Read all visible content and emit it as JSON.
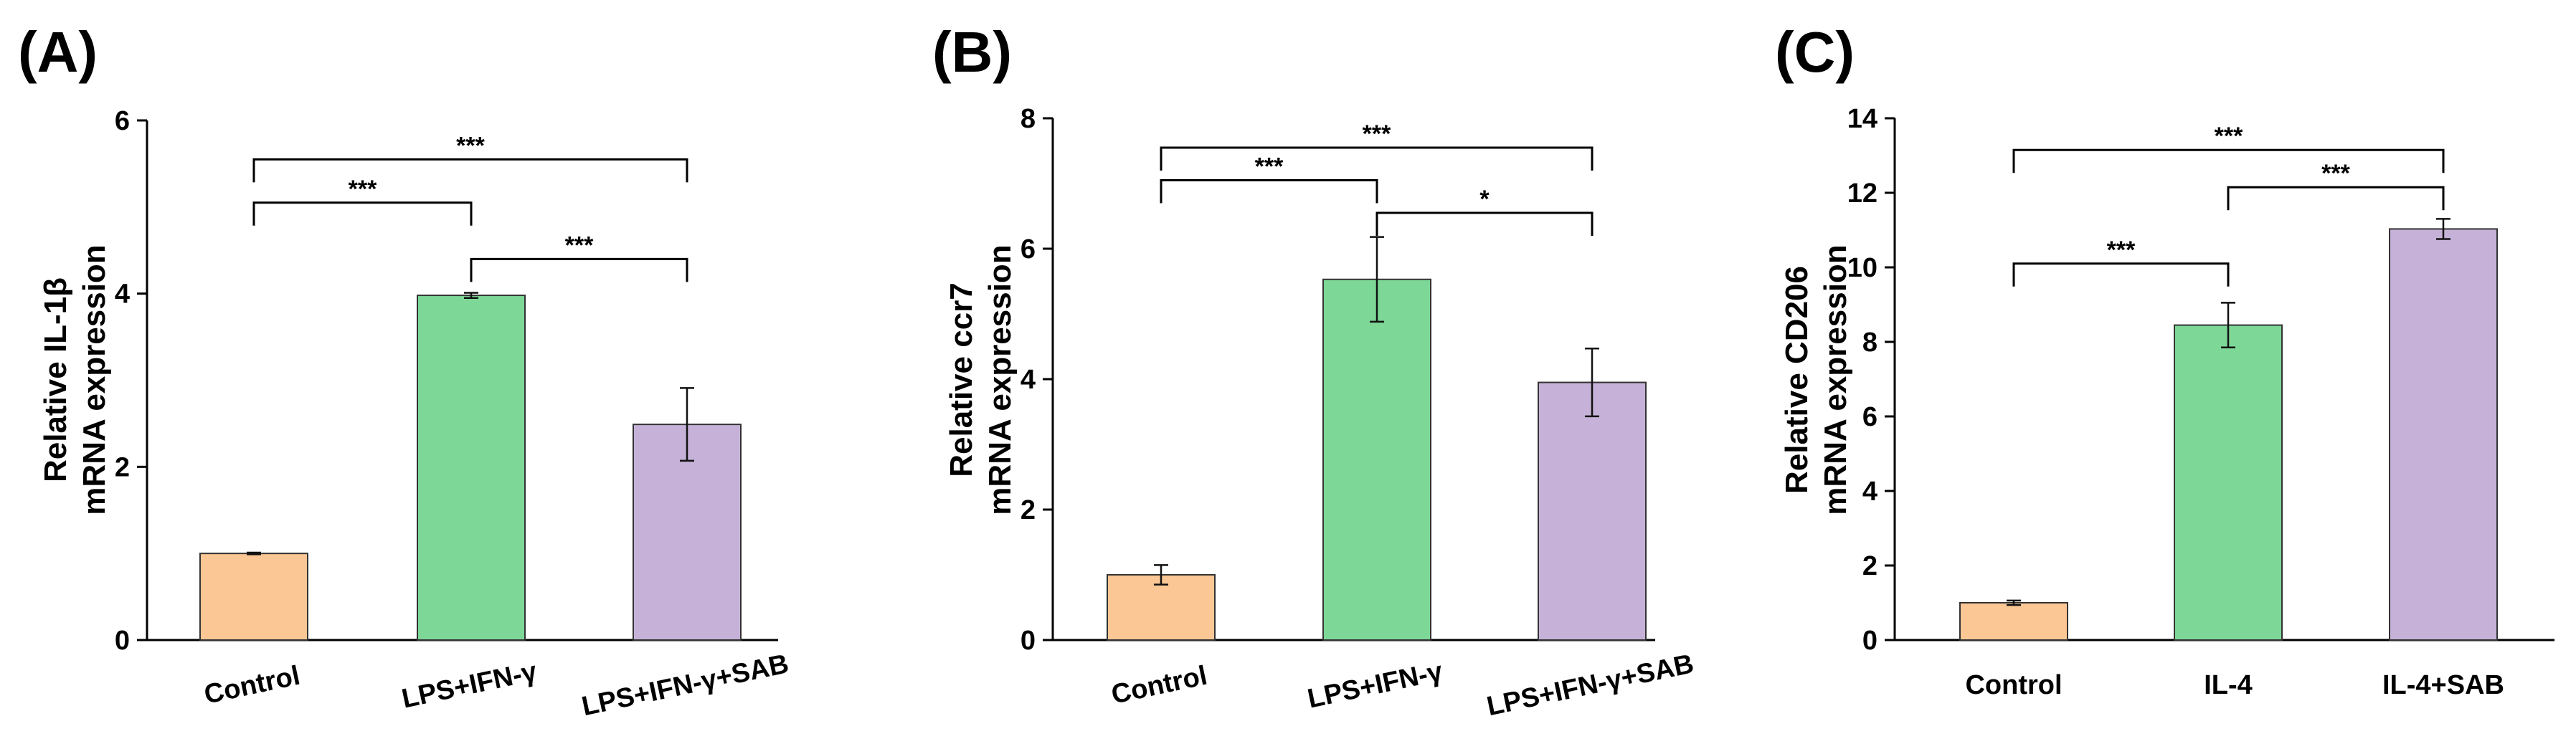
{
  "chart_data": [
    {
      "type": "bar",
      "panel_label": "(A)",
      "ylabel_line1": "Relative IL-1β",
      "ylabel_line2": "mRNA expression",
      "ylim": [
        0,
        6
      ],
      "yticks": [
        "0",
        "2",
        "4",
        "6"
      ],
      "yticks_values": [
        0,
        2,
        4,
        6
      ],
      "categories": [
        "Control",
        "LPS+IFN-γ",
        "LPS+IFN-γ+SAB"
      ],
      "values": [
        1.0,
        3.98,
        2.49
      ],
      "errors": [
        0.01,
        0.03,
        0.42
      ],
      "colors": [
        "#FBC794",
        "#7DD898",
        "#C6B2D8"
      ],
      "label_rotation": -12,
      "significance": [
        {
          "from": 0,
          "to": 1,
          "label": "***",
          "level": 5.05
        },
        {
          "from": 1,
          "to": 2,
          "label": "***",
          "level": 4.4
        },
        {
          "from": 0,
          "to": 2,
          "label": "***",
          "level": 5.55
        }
      ]
    },
    {
      "type": "bar",
      "panel_label": "(B)",
      "ylabel_line1": "Relative ccr7",
      "ylabel_line2": "mRNA expression",
      "ylim": [
        0,
        8
      ],
      "yticks": [
        "0",
        "2",
        "4",
        "6",
        "8"
      ],
      "yticks_values": [
        0,
        2,
        4,
        6,
        8
      ],
      "categories": [
        "Control",
        "LPS+IFN-γ",
        "LPS+IFN-γ+SAB"
      ],
      "values": [
        1.0,
        5.53,
        3.95
      ],
      "errors": [
        0.15,
        0.65,
        0.52
      ],
      "colors": [
        "#FBC794",
        "#7DD898",
        "#C6B2D8"
      ],
      "label_rotation": -12,
      "significance": [
        {
          "from": 0,
          "to": 1,
          "label": "***",
          "level": 7.05
        },
        {
          "from": 1,
          "to": 2,
          "label": "*",
          "level": 6.55
        },
        {
          "from": 0,
          "to": 2,
          "label": "***",
          "level": 7.55
        }
      ]
    },
    {
      "type": "bar",
      "panel_label": "(C)",
      "ylabel_line1": "Relative CD206",
      "ylabel_line2": "mRNA expression",
      "ylim": [
        0,
        14
      ],
      "yticks": [
        "0",
        "2",
        "4",
        "6",
        "8",
        "10",
        "12",
        "14"
      ],
      "yticks_values": [
        0,
        2,
        4,
        6,
        8,
        10,
        12,
        14
      ],
      "categories": [
        "Control",
        "IL-4",
        "IL-4+SAB"
      ],
      "values": [
        1.0,
        8.45,
        11.03
      ],
      "errors": [
        0.06,
        0.6,
        0.27
      ],
      "colors": [
        "#FBC794",
        "#7DD898",
        "#C6B2D8"
      ],
      "label_rotation": 0,
      "significance": [
        {
          "from": 0,
          "to": 1,
          "label": "***",
          "level": 10.1
        },
        {
          "from": 1,
          "to": 2,
          "label": "***",
          "level": 12.15
        },
        {
          "from": 0,
          "to": 2,
          "label": "***",
          "level": 13.15
        }
      ]
    }
  ]
}
